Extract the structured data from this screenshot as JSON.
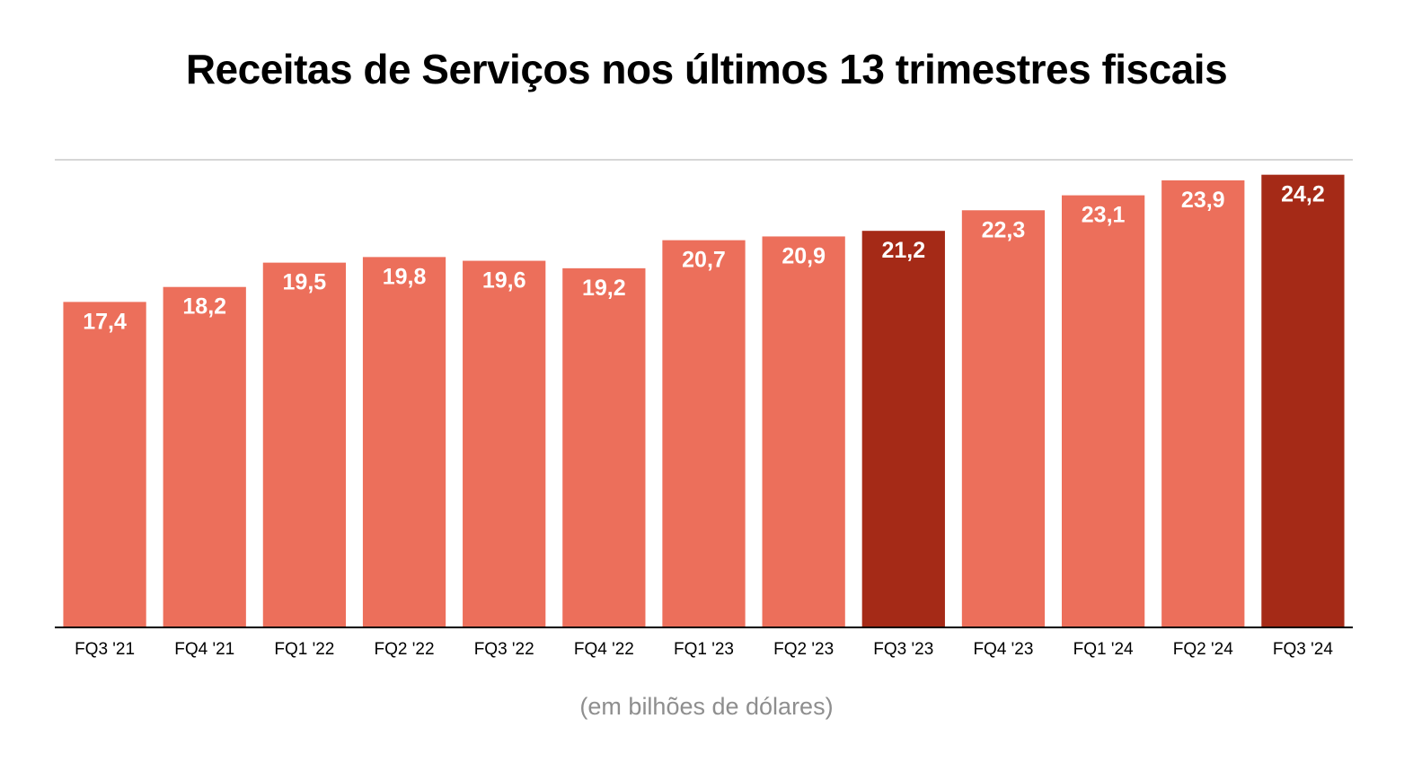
{
  "chart_data": {
    "type": "bar",
    "title": "Receitas de Serviços nos últimos 13 trimestres fiscais",
    "xlabel": "(em bilhões de dólares)",
    "ylabel": "",
    "ylim": [
      0,
      25
    ],
    "grid": false,
    "categories": [
      "FQ3 '21",
      "FQ4 '21",
      "FQ1 '22",
      "FQ2 '22",
      "FQ3 '22",
      "FQ4 '22",
      "FQ1 '23",
      "FQ2 '23",
      "FQ3 '23",
      "FQ4 '23",
      "FQ1 '24",
      "FQ2 '24",
      "FQ3 '24"
    ],
    "values": [
      17.4,
      18.2,
      19.5,
      19.8,
      19.6,
      19.2,
      20.7,
      20.9,
      21.2,
      22.3,
      23.1,
      23.9,
      24.2
    ],
    "labels": [
      "17,4",
      "18,2",
      "19,5",
      "19,8",
      "19,6",
      "19,2",
      "20,7",
      "20,9",
      "21,2",
      "22,3",
      "23,1",
      "23,9",
      "24,2"
    ],
    "highlighted": [
      "FQ3 '23",
      "FQ3 '24"
    ]
  },
  "colors": {
    "bar": "#ec6f5b",
    "bar_highlight": "#a52a17",
    "label_text": "#ffffff",
    "axis": "#000000",
    "top_rule": "#c8c8c8",
    "unit_text": "#8e8e8e"
  }
}
